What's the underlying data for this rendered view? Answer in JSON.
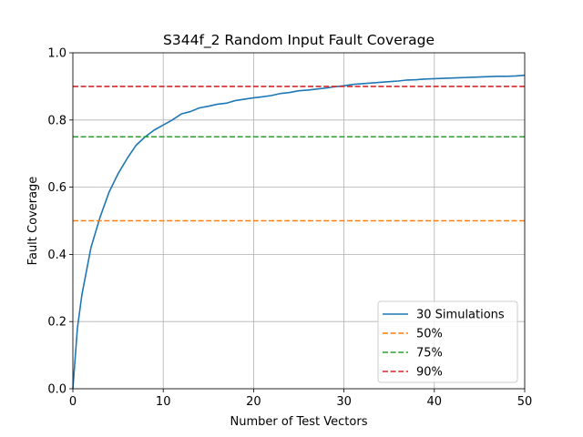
{
  "chart_data": {
    "type": "line",
    "title": "S344f_2 Random Input Fault Coverage",
    "xlabel": "Number of Test Vectors",
    "ylabel": "Fault Coverage",
    "xlim": [
      0,
      50
    ],
    "ylim": [
      0,
      1.0
    ],
    "xticks": [
      0,
      10,
      20,
      30,
      40,
      50
    ],
    "xtick_labels": [
      "0",
      "10",
      "20",
      "30",
      "40",
      "50"
    ],
    "yticks": [
      0,
      0.2,
      0.4,
      0.6,
      0.8,
      1.0
    ],
    "ytick_labels": [
      "0.0",
      "0.2",
      "0.4",
      "0.6",
      "0.8",
      "1.0"
    ],
    "grid": true,
    "legend_position": "lower-right",
    "series": [
      {
        "name": "30 Simulations",
        "style": "solid",
        "color": "#1f77b4",
        "x": [
          0,
          0.5,
          1,
          2,
          3,
          4,
          5,
          6,
          7,
          8,
          9,
          10,
          11,
          12,
          13,
          14,
          15,
          16,
          17,
          18,
          19,
          20,
          21,
          22,
          23,
          24,
          25,
          26,
          27,
          28,
          29,
          30,
          31,
          32,
          33,
          34,
          35,
          36,
          37,
          38,
          39,
          40,
          41,
          42,
          43,
          44,
          45,
          46,
          47,
          48,
          49,
          50
        ],
        "y": [
          0.0,
          0.18,
          0.28,
          0.42,
          0.51,
          0.585,
          0.64,
          0.685,
          0.725,
          0.75,
          0.77,
          0.785,
          0.8,
          0.818,
          0.825,
          0.836,
          0.841,
          0.847,
          0.85,
          0.858,
          0.862,
          0.866,
          0.869,
          0.873,
          0.879,
          0.882,
          0.887,
          0.889,
          0.892,
          0.895,
          0.899,
          0.902,
          0.906,
          0.908,
          0.91,
          0.912,
          0.914,
          0.916,
          0.919,
          0.92,
          0.922,
          0.923,
          0.924,
          0.925,
          0.926,
          0.927,
          0.928,
          0.929,
          0.93,
          0.93,
          0.931,
          0.933
        ]
      },
      {
        "name": "50%",
        "style": "dashed",
        "color": "#ff7f0e",
        "x": [
          0,
          50
        ],
        "y": [
          0.5,
          0.5
        ]
      },
      {
        "name": "75%",
        "style": "dashed",
        "color": "#2ca02c",
        "x": [
          0,
          50
        ],
        "y": [
          0.75,
          0.75
        ]
      },
      {
        "name": "90%",
        "style": "dashed",
        "color": "#d62728",
        "x": [
          0,
          50
        ],
        "y": [
          0.9,
          0.9
        ]
      }
    ]
  }
}
